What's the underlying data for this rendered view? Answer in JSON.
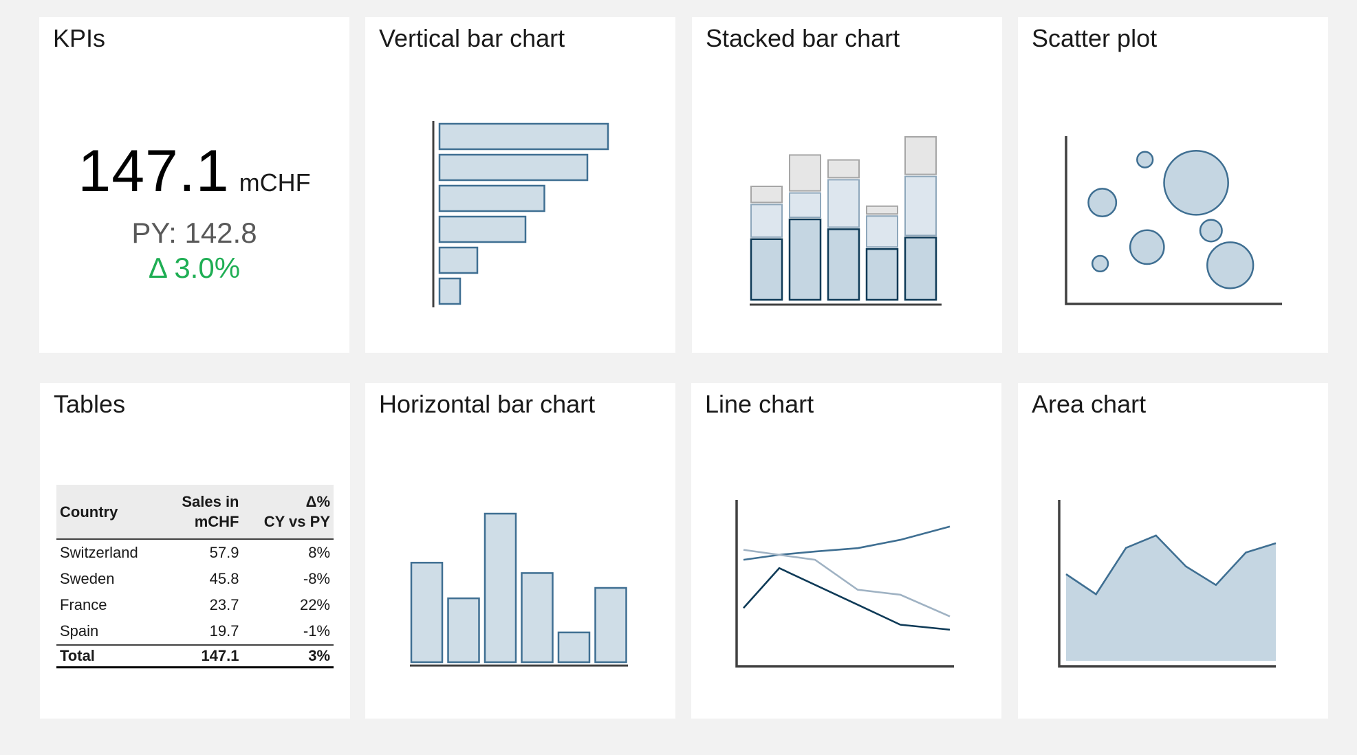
{
  "colors": {
    "dark": "#0e3a57",
    "mid": "#3f6f92",
    "light": "#c5d6e2",
    "lightest": "#cfdde7",
    "grey": "#e6e6e6",
    "grey_stroke": "#a6a6a6",
    "positive": "#1fae54"
  },
  "kpi": {
    "title": "KPIs",
    "value": "147.1",
    "unit": "mCHF",
    "py": "PY: 142.8",
    "delta": "Δ 3.0%"
  },
  "vertical_bar": {
    "title": "Vertical bar chart",
    "chart_data": {
      "type": "bar",
      "orientation": "horizontal",
      "values": [
        98,
        86,
        61,
        50,
        22,
        12
      ],
      "xlim": [
        0,
        100
      ]
    }
  },
  "stacked_bar": {
    "title": "Stacked bar chart",
    "chart_data": {
      "type": "bar",
      "stacked": true,
      "ylim": [
        0,
        100
      ],
      "series": [
        {
          "values": [
            38,
            50,
            44,
            32,
            39
          ]
        },
        {
          "values": [
            21,
            16,
            30,
            20,
            37
          ]
        },
        {
          "values": [
            11,
            23,
            12,
            6,
            24
          ]
        }
      ]
    }
  },
  "scatter": {
    "title": "Scatter plot",
    "chart_data": {
      "type": "scatter",
      "xlim": [
        0,
        100
      ],
      "ylim": [
        0,
        100
      ],
      "points": [
        {
          "x": 37,
          "y": 87,
          "size": 1
        },
        {
          "x": 61,
          "y": 73,
          "size": 9
        },
        {
          "x": 17,
          "y": 61,
          "size": 3
        },
        {
          "x": 68,
          "y": 44,
          "size": 2
        },
        {
          "x": 38,
          "y": 34,
          "size": 4
        },
        {
          "x": 77,
          "y": 23,
          "size": 6
        },
        {
          "x": 16,
          "y": 24,
          "size": 1
        }
      ]
    }
  },
  "table": {
    "title": "Tables",
    "headers": [
      "Country",
      "Sales in",
      "mCHF",
      "Δ%",
      "CY vs PY"
    ],
    "rows": [
      [
        "Switzerland",
        "57.9",
        "8%"
      ],
      [
        "Sweden",
        "45.8",
        "-8%"
      ],
      [
        "France",
        "23.7",
        "22%"
      ],
      [
        "Spain",
        "19.7",
        "-1%"
      ]
    ],
    "total": [
      "Total",
      "147.1",
      "3%"
    ]
  },
  "horizontal_bar": {
    "title": "Horizontal bar chart",
    "chart_data": {
      "type": "bar",
      "orientation": "vertical",
      "values": [
        67,
        43,
        100,
        60,
        20,
        50
      ],
      "ylim": [
        0,
        100
      ]
    }
  },
  "line": {
    "title": "Line chart",
    "chart_data": {
      "type": "line",
      "x": [
        0,
        1,
        2,
        3,
        4,
        5
      ],
      "ylim": [
        0,
        100
      ],
      "series": [
        {
          "values": [
            64,
            67,
            69,
            71,
            76,
            84
          ]
        },
        {
          "values": [
            70,
            null,
            64,
            46,
            43,
            30
          ]
        },
        {
          "values": [
            35,
            59,
            null,
            37,
            25,
            22
          ]
        }
      ]
    }
  },
  "area": {
    "title": "Area chart",
    "chart_data": {
      "type": "area",
      "x": [
        0,
        1,
        2,
        3,
        4,
        5,
        6,
        7
      ],
      "ylim": [
        0,
        100
      ],
      "values": [
        56,
        43,
        73,
        81,
        61,
        49,
        70,
        76
      ]
    }
  }
}
